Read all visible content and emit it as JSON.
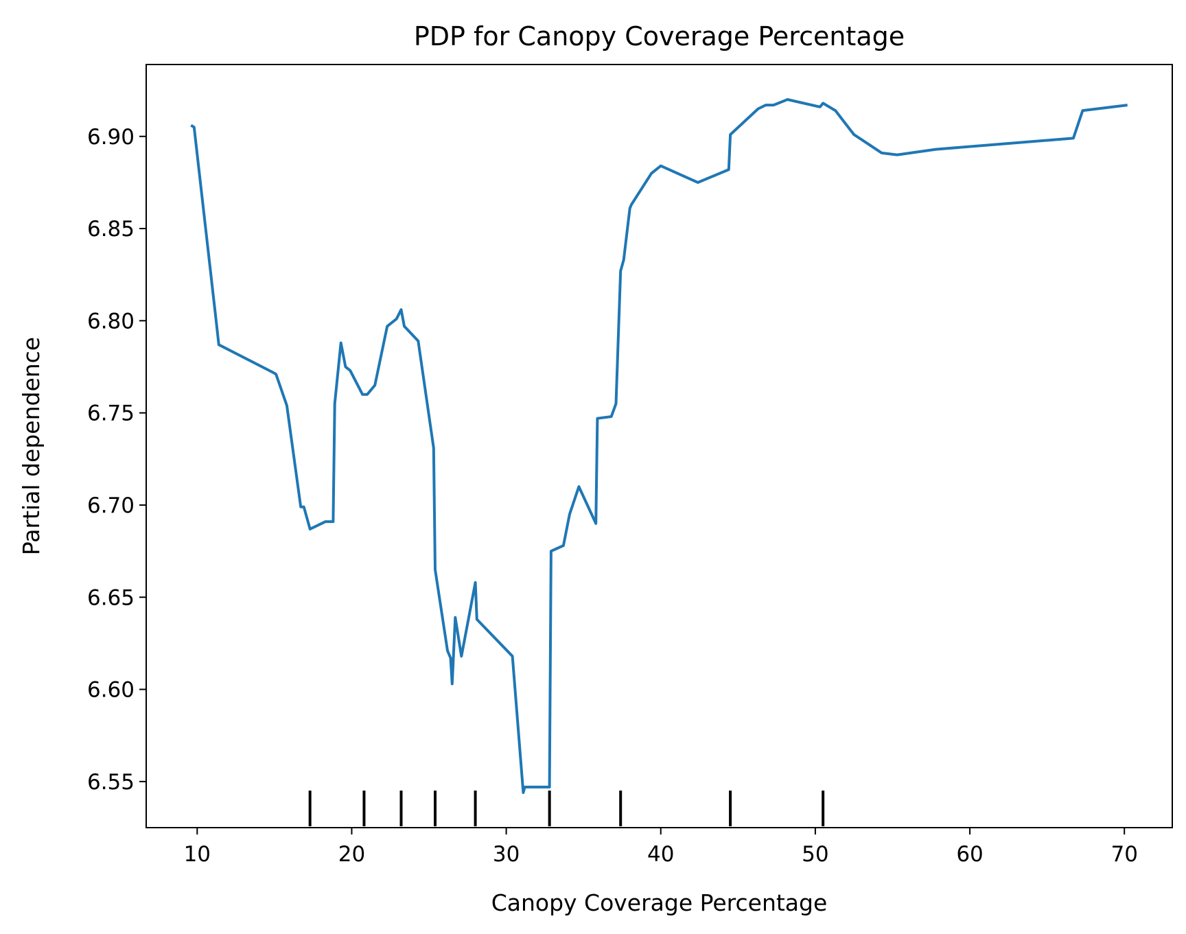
{
  "chart_data": {
    "type": "line",
    "title": "PDP for Canopy Coverage Percentage",
    "xlabel": "Canopy Coverage Percentage",
    "ylabel": "Partial dependence",
    "xlim": [
      6.7,
      73.1
    ],
    "ylim": [
      6.525,
      6.939
    ],
    "grid": false,
    "x_ticks": [
      10,
      20,
      30,
      40,
      50,
      60,
      70
    ],
    "x_tick_labels": [
      "10",
      "20",
      "30",
      "40",
      "50",
      "60",
      "70"
    ],
    "y_ticks": [
      6.55,
      6.6,
      6.65,
      6.7,
      6.75,
      6.8,
      6.85,
      6.9
    ],
    "y_tick_labels": [
      "6.55",
      "6.60",
      "6.65",
      "6.70",
      "6.75",
      "6.80",
      "6.85",
      "6.90"
    ],
    "line_color": "#1f77b4",
    "rug_color": "#000000",
    "deciles": [
      17.3,
      20.8,
      23.2,
      25.4,
      28.0,
      32.8,
      37.4,
      44.5,
      50.5
    ],
    "series": [
      {
        "x": [
          9.6,
          9.8,
          11.2,
          11.4,
          14.9,
          15.1,
          15.8,
          16.7,
          16.9,
          17.3,
          18.3,
          18.8,
          18.9,
          19.3,
          19.6,
          19.9,
          20.7,
          21.0,
          21.5,
          22.3,
          22.9,
          23.2,
          23.4,
          24.3,
          25.3,
          25.4,
          26.2,
          26.4,
          26.5,
          26.7,
          27.1,
          28.0,
          28.1,
          30.4,
          31.1,
          31.2,
          32.8,
          32.9,
          33.7,
          34.1,
          34.7,
          35.8,
          35.9,
          36.8,
          37.1,
          37.4,
          37.6,
          38.0,
          38.1,
          39.4,
          40.0,
          42.4,
          44.4,
          44.5,
          46.3,
          46.8,
          47.3,
          48.2,
          50.3,
          50.5,
          50.7,
          51.3,
          52.5,
          54.3,
          55.3,
          57.8,
          66.7,
          67.3,
          70.2
        ],
        "y": [
          6.906,
          6.905,
          6.802,
          6.787,
          6.772,
          6.771,
          6.754,
          6.699,
          6.699,
          6.687,
          6.691,
          6.691,
          6.755,
          6.788,
          6.775,
          6.773,
          6.76,
          6.76,
          6.765,
          6.797,
          6.801,
          6.806,
          6.797,
          6.789,
          6.731,
          6.665,
          6.621,
          6.617,
          6.603,
          6.639,
          6.618,
          6.658,
          6.638,
          6.618,
          6.544,
          6.547,
          6.547,
          6.675,
          6.678,
          6.695,
          6.71,
          6.69,
          6.747,
          6.748,
          6.755,
          6.827,
          6.833,
          6.861,
          6.863,
          6.88,
          6.884,
          6.875,
          6.882,
          6.901,
          6.915,
          6.917,
          6.917,
          6.92,
          6.916,
          6.918,
          6.917,
          6.914,
          6.901,
          6.891,
          6.89,
          6.893,
          6.899,
          6.914,
          6.917
        ]
      }
    ]
  }
}
